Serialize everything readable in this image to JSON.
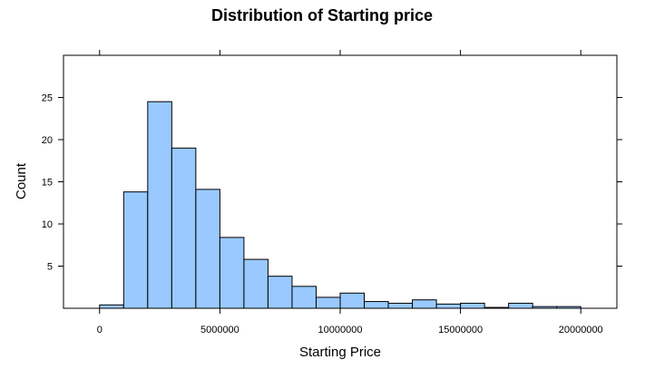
{
  "chart_data": {
    "type": "bar",
    "title": "Distribution of Starting price",
    "xlabel": "Starting Price",
    "ylabel": "Count",
    "xlim": [
      -1500000,
      21500000
    ],
    "ylim": [
      0,
      30
    ],
    "x_ticks": [
      0,
      5000000,
      10000000,
      15000000,
      20000000
    ],
    "x_tick_labels": [
      "0",
      "5000000",
      "10000000",
      "15000000",
      "20000000"
    ],
    "y_ticks": [
      5,
      10,
      15,
      20,
      25
    ],
    "y_tick_labels": [
      "5",
      "10",
      "15",
      "20",
      "25"
    ],
    "bin_width": 1000000,
    "bin_edges": [
      0,
      1000000,
      2000000,
      3000000,
      4000000,
      5000000,
      6000000,
      7000000,
      8000000,
      9000000,
      10000000,
      11000000,
      12000000,
      13000000,
      14000000,
      15000000,
      16000000,
      17000000,
      18000000,
      19000000,
      20000000
    ],
    "values": [
      0.4,
      13.8,
      24.5,
      19.0,
      14.1,
      8.4,
      5.8,
      3.8,
      2.6,
      1.3,
      1.8,
      0.8,
      0.6,
      1.0,
      0.5,
      0.6,
      0.1,
      0.6,
      0.2,
      0.2
    ],
    "bar_color": "#99c9ff",
    "grid": false
  }
}
